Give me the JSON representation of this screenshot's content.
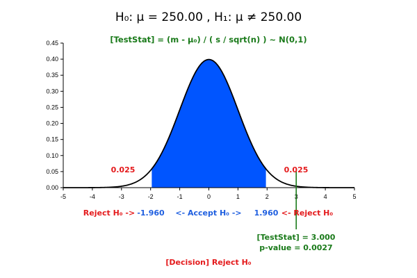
{
  "header": {
    "title": "H₀: μ = 250.00 , H₁: μ ≠ 250.00",
    "formula": "[TestStat] = (m - μ₀) / ( s / sqrt(n) ) ~ N(0,1)"
  },
  "annotations": {
    "left_tail_prob": "0.025",
    "right_tail_prob": "0.025",
    "reject_left": "Reject H₀ ->",
    "lower_critical": "-1.960",
    "accept": "<- Accept H₀ ->",
    "upper_critical": "1.960",
    "reject_right": "<- Reject H₀",
    "test_stat": "[TestStat] = 3.000",
    "p_value": "p-value = 0.0027",
    "decision": "[Decision] Reject H₀"
  },
  "colors": {
    "curve": "#000000",
    "acceptance_fill": "#0055ff",
    "test_stat_line": "#1a7a1a",
    "reject_text": "#e41a1c",
    "accept_text": "#1f5fe0",
    "stat_text": "#1a7a1a"
  },
  "chart_data": {
    "type": "area",
    "distribution": "standard normal N(0,1)",
    "xlim": [
      -5,
      5
    ],
    "ylim": [
      0,
      0.45
    ],
    "x_ticks": [
      -5,
      -4,
      -3,
      -2,
      -1,
      0,
      1,
      2,
      3,
      4,
      5
    ],
    "y_ticks": [
      0.0,
      0.05,
      0.1,
      0.15,
      0.2,
      0.25,
      0.3,
      0.35,
      0.4,
      0.45
    ],
    "critical_values": [
      -1.96,
      1.96
    ],
    "alpha_each_tail": 0.025,
    "test_statistic": 3.0,
    "p_value": 0.0027,
    "shaded_region": [
      -1.96,
      1.96
    ],
    "grid": false,
    "title": "H₀: μ = 250.00 , H₁: μ ≠ 250.00",
    "xlabel": "",
    "ylabel": ""
  }
}
